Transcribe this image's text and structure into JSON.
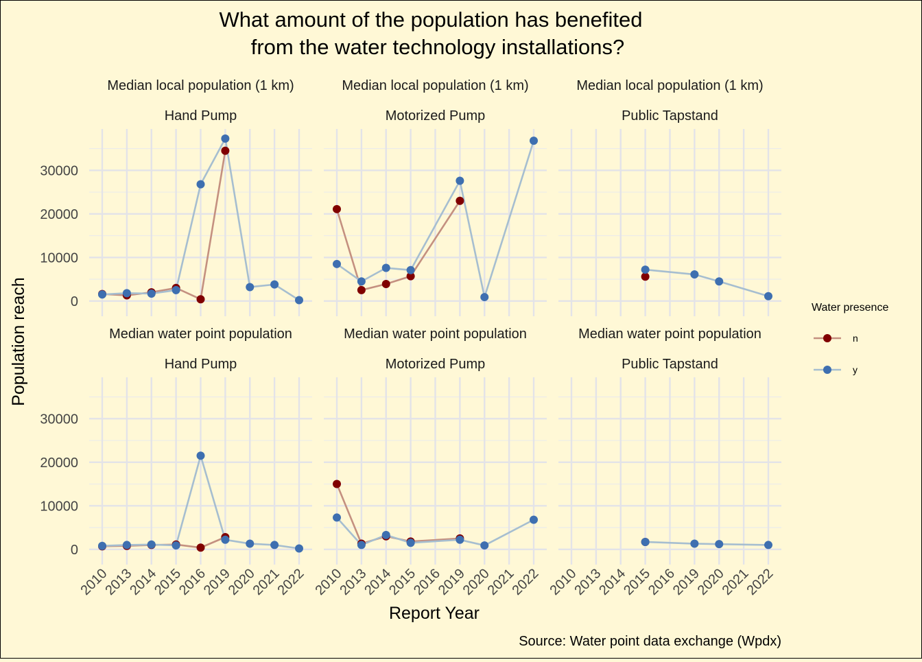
{
  "chart_data": {
    "type": "line",
    "title_line1": "What amount of the population has benefited",
    "title_line2": "from the water technology installations?",
    "xlabel": "Report Year",
    "ylabel": "Population reach",
    "caption": "Source: Water point data exchange (Wpdx)",
    "legend_title": "Water presence",
    "legend_position": "right",
    "grid": true,
    "x_categories": [
      "2010",
      "2013",
      "2014",
      "2015",
      "2016",
      "2019",
      "2020",
      "2021",
      "2022"
    ],
    "ylim": [
      -3500,
      39500
    ],
    "yticks": [
      0,
      10000,
      20000,
      30000
    ],
    "series_styles": [
      {
        "name": "n",
        "point_color": "#800000",
        "line_color": "#c49080"
      },
      {
        "name": "y",
        "point_color": "#3e6fb0",
        "line_color": "#a6bed0"
      }
    ],
    "facet_rows": [
      "Median local population (1 km)",
      "Median water point population"
    ],
    "facet_cols": [
      "Hand Pump",
      "Motorized Pump",
      "Public Tapstand"
    ],
    "panels": [
      {
        "row": 0,
        "col": 0,
        "series": [
          {
            "name": "n",
            "x": [
              "2010",
              "2013",
              "2014",
              "2015",
              "2016",
              "2019"
            ],
            "values": [
              1600,
              1300,
              2000,
              3000,
              400,
              34500
            ]
          },
          {
            "name": "y",
            "x": [
              "2010",
              "2013",
              "2014",
              "2015",
              "2016",
              "2019",
              "2020",
              "2021",
              "2022"
            ],
            "values": [
              1500,
              1800,
              1700,
              2500,
              26800,
              37300,
              3200,
              3800,
              200
            ]
          }
        ]
      },
      {
        "row": 0,
        "col": 1,
        "series": [
          {
            "name": "n",
            "x": [
              "2010",
              "2013",
              "2014",
              "2015",
              "2019"
            ],
            "values": [
              21100,
              2500,
              3900,
              5700,
              23000
            ]
          },
          {
            "name": "y",
            "x": [
              "2010",
              "2013",
              "2014",
              "2015",
              "2019",
              "2020",
              "2022"
            ],
            "values": [
              8500,
              4500,
              7600,
              7100,
              27600,
              900,
              36800
            ]
          }
        ]
      },
      {
        "row": 0,
        "col": 2,
        "series": [
          {
            "name": "n",
            "x": [
              "2015"
            ],
            "values": [
              5600
            ]
          },
          {
            "name": "y",
            "x": [
              "2015",
              "2019",
              "2020",
              "2022"
            ],
            "values": [
              7200,
              6100,
              4500,
              1100
            ]
          }
        ]
      },
      {
        "row": 1,
        "col": 0,
        "series": [
          {
            "name": "n",
            "x": [
              "2010",
              "2013",
              "2014",
              "2015",
              "2016",
              "2019"
            ],
            "values": [
              700,
              800,
              1000,
              1100,
              400,
              2800
            ]
          },
          {
            "name": "y",
            "x": [
              "2010",
              "2013",
              "2014",
              "2015",
              "2016",
              "2019",
              "2020",
              "2021",
              "2022"
            ],
            "values": [
              800,
              1000,
              1100,
              900,
              21500,
              2200,
              1300,
              1000,
              200
            ]
          }
        ]
      },
      {
        "row": 1,
        "col": 1,
        "series": [
          {
            "name": "n",
            "x": [
              "2010",
              "2013",
              "2014",
              "2015",
              "2019"
            ],
            "values": [
              15000,
              1300,
              3000,
              1800,
              2500
            ]
          },
          {
            "name": "y",
            "x": [
              "2010",
              "2013",
              "2014",
              "2015",
              "2019",
              "2020",
              "2022"
            ],
            "values": [
              7300,
              1000,
              3300,
              1500,
              2200,
              900,
              6800
            ]
          }
        ]
      },
      {
        "row": 1,
        "col": 2,
        "series": [
          {
            "name": "n",
            "x": [
              "2015"
            ],
            "values": [
              1700
            ]
          },
          {
            "name": "y",
            "x": [
              "2015",
              "2019",
              "2020",
              "2022"
            ],
            "values": [
              1700,
              1300,
              1200,
              1000
            ]
          }
        ]
      }
    ]
  }
}
